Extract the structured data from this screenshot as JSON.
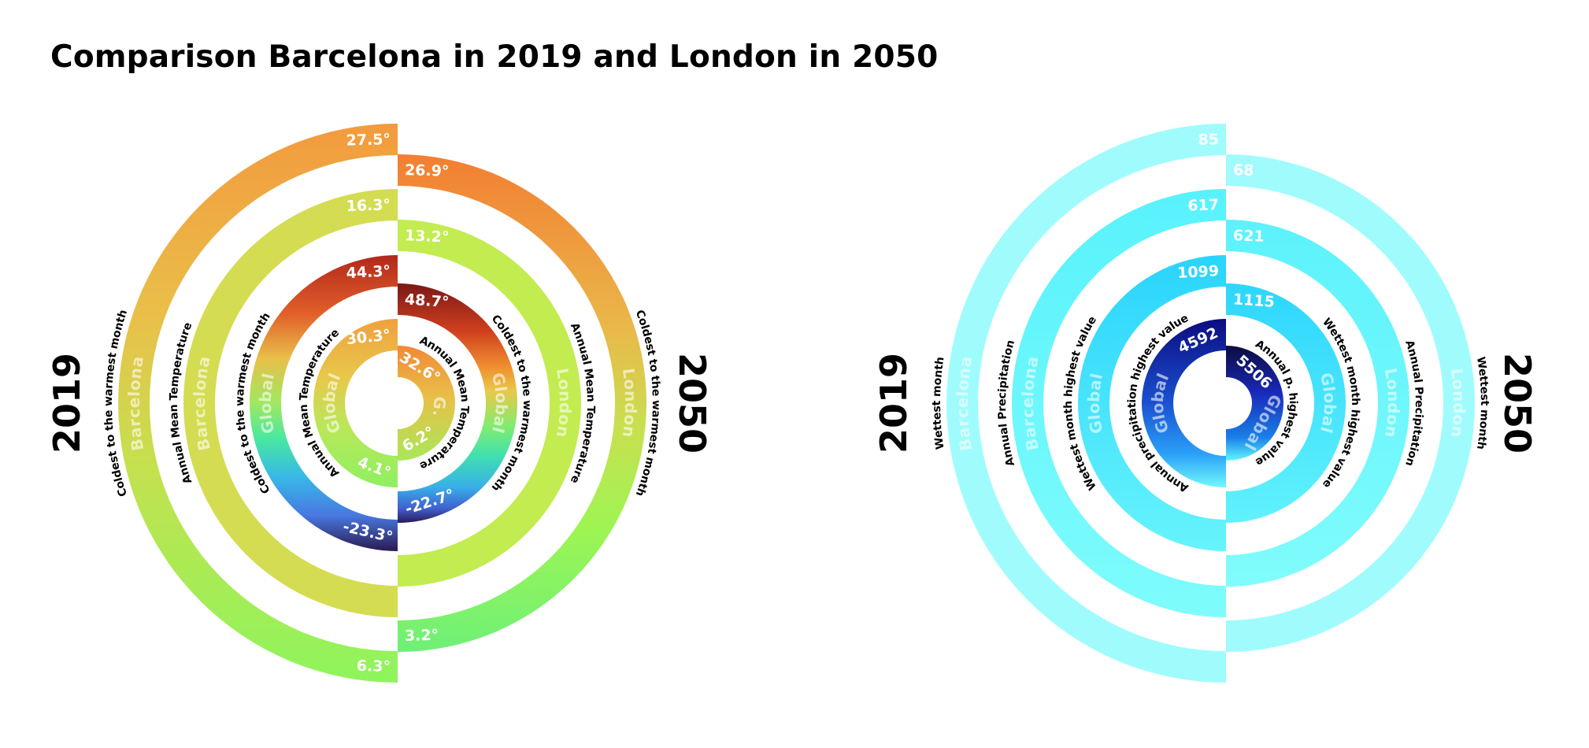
{
  "title": "Comparison Barcelona in 2019 and London in 2050",
  "charts": [
    {
      "name": "temperature",
      "year_left": "2019",
      "year_right": "2050",
      "left": [
        {
          "ring_label": "Barcelona",
          "caption": "Coldest to the warmest month",
          "values": [
            "27.5°",
            "6.3°"
          ],
          "colors": [
            [
              "#f39a3e",
              0
            ],
            [
              "#e9c04a",
              0.35
            ],
            [
              "#c6e04e",
              0.6
            ],
            [
              "#8ef55c",
              1
            ]
          ]
        },
        {
          "ring_label": "Barcelona",
          "caption": "Annual Mean Temperature",
          "values": [
            "16.3°"
          ],
          "colors": [
            [
              "#d4dc52",
              0
            ],
            [
              "#d4dc52",
              1
            ]
          ]
        },
        {
          "ring_label": "Global",
          "caption": "Coldest to the warmest month",
          "values": [
            "44.3°",
            "-23.3°"
          ],
          "colors": [
            [
              "#b2281c",
              0
            ],
            [
              "#e2602a",
              0.2
            ],
            [
              "#e8c04a",
              0.35
            ],
            [
              "#a0e860",
              0.5
            ],
            [
              "#48e8a0",
              0.62
            ],
            [
              "#38b8e8",
              0.75
            ],
            [
              "#4878e0",
              0.88
            ],
            [
              "#2a1a50",
              1
            ]
          ]
        },
        {
          "ring_label": "Global",
          "caption": "Annual Mean Temperature",
          "values": [
            "30.3°",
            "4.1°"
          ],
          "colors": [
            [
              "#f0a040",
              0
            ],
            [
              "#e8c84a",
              0.35
            ],
            [
              "#b8e85a",
              0.65
            ],
            [
              "#8ef060",
              1
            ]
          ]
        }
      ],
      "right": [
        {
          "ring_label": "London",
          "caption": "Coldest to the warmest month",
          "values": [
            "26.9°",
            "3.2°"
          ],
          "colors": [
            [
              "#f27e32",
              0
            ],
            [
              "#eab84a",
              0.35
            ],
            [
              "#c8e050",
              0.55
            ],
            [
              "#9ef552",
              0.75
            ],
            [
              "#6ef078",
              1
            ]
          ]
        },
        {
          "ring_label": "London",
          "caption": "Annual Mean Temperature",
          "values": [
            "13.2°"
          ],
          "colors": [
            [
              "#c2ec50",
              0
            ],
            [
              "#c2ec50",
              1
            ]
          ]
        },
        {
          "ring_label": "Global",
          "caption": "Coldest to the warmest month",
          "values": [
            "48.7°",
            "-22.7°"
          ],
          "colors": [
            [
              "#7a1818",
              0
            ],
            [
              "#d0401e",
              0.2
            ],
            [
              "#f09030",
              0.35
            ],
            [
              "#e8c84a",
              0.45
            ],
            [
              "#80ec70",
              0.6
            ],
            [
              "#40e0b0",
              0.72
            ],
            [
              "#38b0e8",
              0.85
            ],
            [
              "#4060d0",
              0.94
            ],
            [
              "#2a1a58",
              1
            ]
          ]
        },
        {
          "ring_label": "G.",
          "caption": "Annual Mean Temperature",
          "values": [
            "32.6°",
            "6.2°"
          ],
          "colors": [
            [
              "#f28838",
              0
            ],
            [
              "#e8c048",
              0.45
            ],
            [
              "#a8e858",
              1
            ]
          ]
        }
      ]
    },
    {
      "name": "precipitation",
      "year_left": "2019",
      "year_right": "2050",
      "left": [
        {
          "ring_label": "Barcelona",
          "caption": "Wettest month",
          "values": [
            "85"
          ],
          "colors": [
            [
              "#a0fcfc",
              0
            ],
            [
              "#a0fcfc",
              1
            ]
          ]
        },
        {
          "ring_label": "Barcelona",
          "caption": "Annual Precipitation",
          "values": [
            "617"
          ],
          "colors": [
            [
              "#58f2fc",
              0
            ],
            [
              "#7efcfc",
              1
            ]
          ]
        },
        {
          "ring_label": "Global",
          "caption": "Wettest month highest value",
          "values": [
            "1099"
          ],
          "colors": [
            [
              "#2ad4fc",
              0
            ],
            [
              "#66f4fc",
              1
            ]
          ]
        },
        {
          "ring_label": "Global",
          "caption": "Annual precipitation highest value",
          "values": [
            "4592"
          ],
          "colors": [
            [
              "#0c0c80",
              0
            ],
            [
              "#1a50d0",
              0.5
            ],
            [
              "#2aa0f8",
              0.8
            ],
            [
              "#70f8fc",
              1
            ]
          ]
        }
      ],
      "right": [
        {
          "ring_label": "London",
          "caption": "Wettest month",
          "values": [
            "68"
          ],
          "colors": [
            [
              "#a0fcfc",
              0
            ],
            [
              "#a0fcfc",
              1
            ]
          ]
        },
        {
          "ring_label": "London",
          "caption": "Annual Precipitation",
          "values": [
            "621"
          ],
          "colors": [
            [
              "#5cf2fc",
              0
            ],
            [
              "#80fcfc",
              1
            ]
          ]
        },
        {
          "ring_label": "Global",
          "caption": "Wettest month highest value",
          "values": [
            "1115"
          ],
          "colors": [
            [
              "#2ed6fc",
              0
            ],
            [
              "#60f2fc",
              1
            ]
          ]
        },
        {
          "ring_label": "Global",
          "caption": "Annual p. highest value",
          "values": [
            "5506"
          ],
          "colors": [
            [
              "#0c0c3c",
              0
            ],
            [
              "#1828b8",
              0.4
            ],
            [
              "#1a80e8",
              0.8
            ],
            [
              "#60f8fc",
              1
            ]
          ]
        }
      ]
    }
  ]
}
